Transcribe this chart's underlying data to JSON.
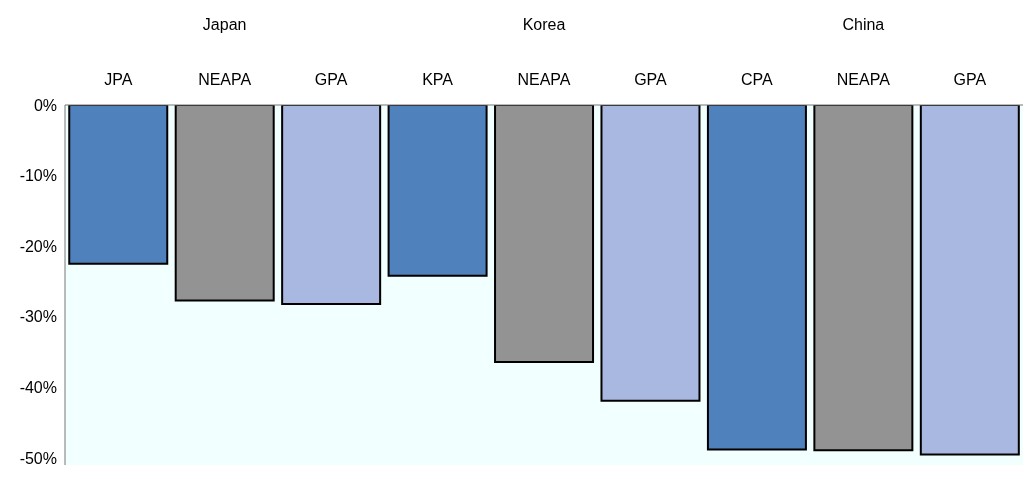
{
  "chart_data": {
    "type": "bar",
    "categories": [
      "JPA",
      "NEAPA",
      "GPA",
      "KPA",
      "NEAPA",
      "GPA",
      "CPA",
      "NEAPA",
      "GPA"
    ],
    "values": [
      -22.5,
      -27.7,
      -28.2,
      -24.2,
      -36.4,
      -41.9,
      -48.8,
      -48.9,
      -49.5
    ],
    "colors": [
      "#4f81bd",
      "#939393",
      "#a8b8e1",
      "#4f81bd",
      "#939393",
      "#a8b8e1",
      "#4f81bd",
      "#939393",
      "#a8b8e1"
    ],
    "ylim": [
      -51,
      0
    ],
    "yticks": [
      {
        "value": 0,
        "label": "0%"
      },
      {
        "value": -10,
        "label": "-10%"
      },
      {
        "value": -20,
        "label": "-20%"
      },
      {
        "value": -30,
        "label": "-30%"
      },
      {
        "value": -40,
        "label": "-40%"
      },
      {
        "value": -50,
        "label": "-50%"
      }
    ],
    "annotations": [
      "Japan",
      "Korea",
      "China"
    ]
  }
}
